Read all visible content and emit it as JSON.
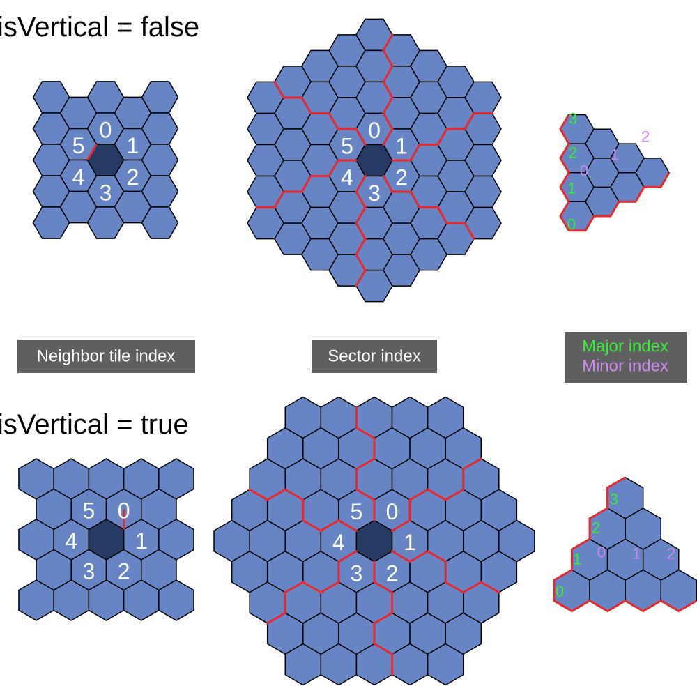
{
  "titles": {
    "horizontal": "isVertical = false",
    "vertical": "isVertical = true"
  },
  "captions": {
    "neighbor": "Neighbor tile index",
    "sector": "Sector index",
    "major": "Major index",
    "minor": "Minor index"
  },
  "neighbor_labels": [
    "0",
    "1",
    "2",
    "3",
    "4",
    "5"
  ],
  "sector_labels": [
    "0",
    "1",
    "2",
    "3",
    "4",
    "5"
  ],
  "major_labels": [
    "0",
    "1",
    "2",
    "3"
  ],
  "minor_labels": [
    "0",
    "1",
    "2"
  ],
  "colors": {
    "tile": "#6785c5",
    "center_tile": "#273a63",
    "tile_stroke": "#000000",
    "boundary": "#e8282c",
    "label": "#ffffff",
    "caption_box": "#5f5f5f",
    "caption_text": "#ffffff",
    "major_text": "#33ee33",
    "minor_text": "#cc88ee"
  }
}
